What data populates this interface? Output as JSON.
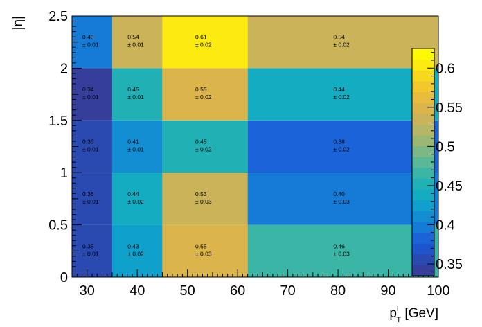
{
  "chart_data": {
    "type": "heatmap",
    "title": "",
    "xlabel": "p_T^l [GeV]",
    "xlabel_parts": {
      "base": "p",
      "sub": "T",
      "sup": "l",
      "unit": "[GeV]"
    },
    "ylabel": "|η|",
    "x_edges": [
      27,
      35,
      45,
      62,
      100
    ],
    "y_edges": [
      0,
      0.5,
      1,
      1.5,
      2,
      2.5
    ],
    "xlim": [
      27,
      100
    ],
    "ylim": [
      0,
      2.5
    ],
    "x_ticks": [
      30,
      40,
      50,
      60,
      70,
      80,
      90,
      100
    ],
    "y_ticks": [
      "0",
      "0.5",
      "1",
      "1.5",
      "2",
      "2.5"
    ],
    "grid": false,
    "cells": [
      {
        "xi": 0,
        "yi": 0,
        "value": "0.35",
        "error": "± 0.01"
      },
      {
        "xi": 1,
        "yi": 0,
        "value": "0.43",
        "error": "± 0.02"
      },
      {
        "xi": 2,
        "yi": 0,
        "value": "0.55",
        "error": "± 0.03"
      },
      {
        "xi": 3,
        "yi": 0,
        "value": "0.46",
        "error": "± 0.03"
      },
      {
        "xi": 0,
        "yi": 1,
        "value": "0.36",
        "error": "± 0.01"
      },
      {
        "xi": 1,
        "yi": 1,
        "value": "0.44",
        "error": "± 0.02"
      },
      {
        "xi": 2,
        "yi": 1,
        "value": "0.53",
        "error": "± 0.03"
      },
      {
        "xi": 3,
        "yi": 1,
        "value": "0.40",
        "error": "± 0.03"
      },
      {
        "xi": 0,
        "yi": 2,
        "value": "0.36",
        "error": "± 0.01"
      },
      {
        "xi": 1,
        "yi": 2,
        "value": "0.41",
        "error": "± 0.01"
      },
      {
        "xi": 2,
        "yi": 2,
        "value": "0.45",
        "error": "± 0.02"
      },
      {
        "xi": 3,
        "yi": 2,
        "value": "0.38",
        "error": "± 0.02"
      },
      {
        "xi": 0,
        "yi": 3,
        "value": "0.34",
        "error": "± 0.01"
      },
      {
        "xi": 1,
        "yi": 3,
        "value": "0.45",
        "error": "± 0.01"
      },
      {
        "xi": 2,
        "yi": 3,
        "value": "0.55",
        "error": "± 0.02"
      },
      {
        "xi": 3,
        "yi": 3,
        "value": "0.44",
        "error": "± 0.02"
      },
      {
        "xi": 0,
        "yi": 4,
        "value": "0.40",
        "error": "± 0.01"
      },
      {
        "xi": 1,
        "yi": 4,
        "value": "0.54",
        "error": "± 0.01"
      },
      {
        "xi": 2,
        "yi": 4,
        "value": "0.61",
        "error": "± 0.02"
      },
      {
        "xi": 3,
        "yi": 4,
        "value": "0.54",
        "error": "± 0.02"
      }
    ],
    "colorbar": {
      "range": [
        0.335,
        0.625
      ],
      "ticks": [
        "0.35",
        "0.4",
        "0.45",
        "0.5",
        "0.55",
        "0.6"
      ],
      "palette": [
        "#353E9B",
        "#2A4AB2",
        "#1F55CC",
        "#1A63D9",
        "#167BD6",
        "#138ED2",
        "#0FA0CB",
        "#13ACC0",
        "#21B1B5",
        "#3AB5A6",
        "#5AB896",
        "#7CB885",
        "#9BB873",
        "#B5B766",
        "#CBB35A",
        "#DBB54C",
        "#E8BC3D",
        "#F2C82D",
        "#F8D81C",
        "#FCEA10",
        "#FFFA00"
      ]
    }
  }
}
